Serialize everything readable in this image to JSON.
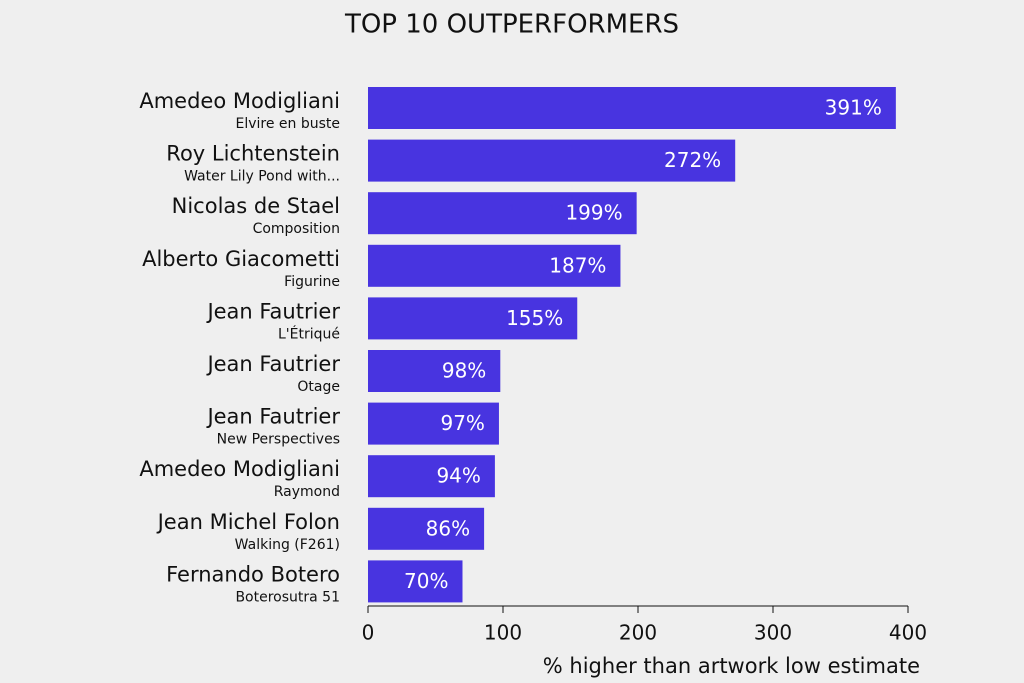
{
  "chart_data": {
    "type": "bar",
    "orientation": "horizontal",
    "title": "TOP 10 OUTPERFORMERS",
    "categories": [
      "Amedeo Modigliani",
      "Roy Lichtenstein",
      "Nicolas de Stael",
      "Alberto Giacometti",
      "Jean Fautrier",
      "Jean Fautrier",
      "Jean Fautrier",
      "Amedeo Modigliani",
      "Jean Michel Folon",
      "Fernando Botero"
    ],
    "artworks": [
      "Elvire en buste",
      "Water Lily Pond with...",
      "Composition",
      "Figurine",
      "L'Étriqué",
      "Otage",
      "New Perspectives",
      "Raymond",
      "Walking (F261)",
      "Boterosutra 51"
    ],
    "values": [
      391,
      272,
      199,
      187,
      155,
      98,
      97,
      94,
      86,
      70
    ],
    "value_labels": [
      "391%",
      "272%",
      "199%",
      "187%",
      "155%",
      "98%",
      "97%",
      "94%",
      "86%",
      "70%"
    ],
    "color": "#4834e0",
    "xlabel": "% higher than artwork low estimate",
    "xlim": [
      0,
      400
    ],
    "xticks": [
      0,
      100,
      200,
      300,
      400
    ]
  }
}
